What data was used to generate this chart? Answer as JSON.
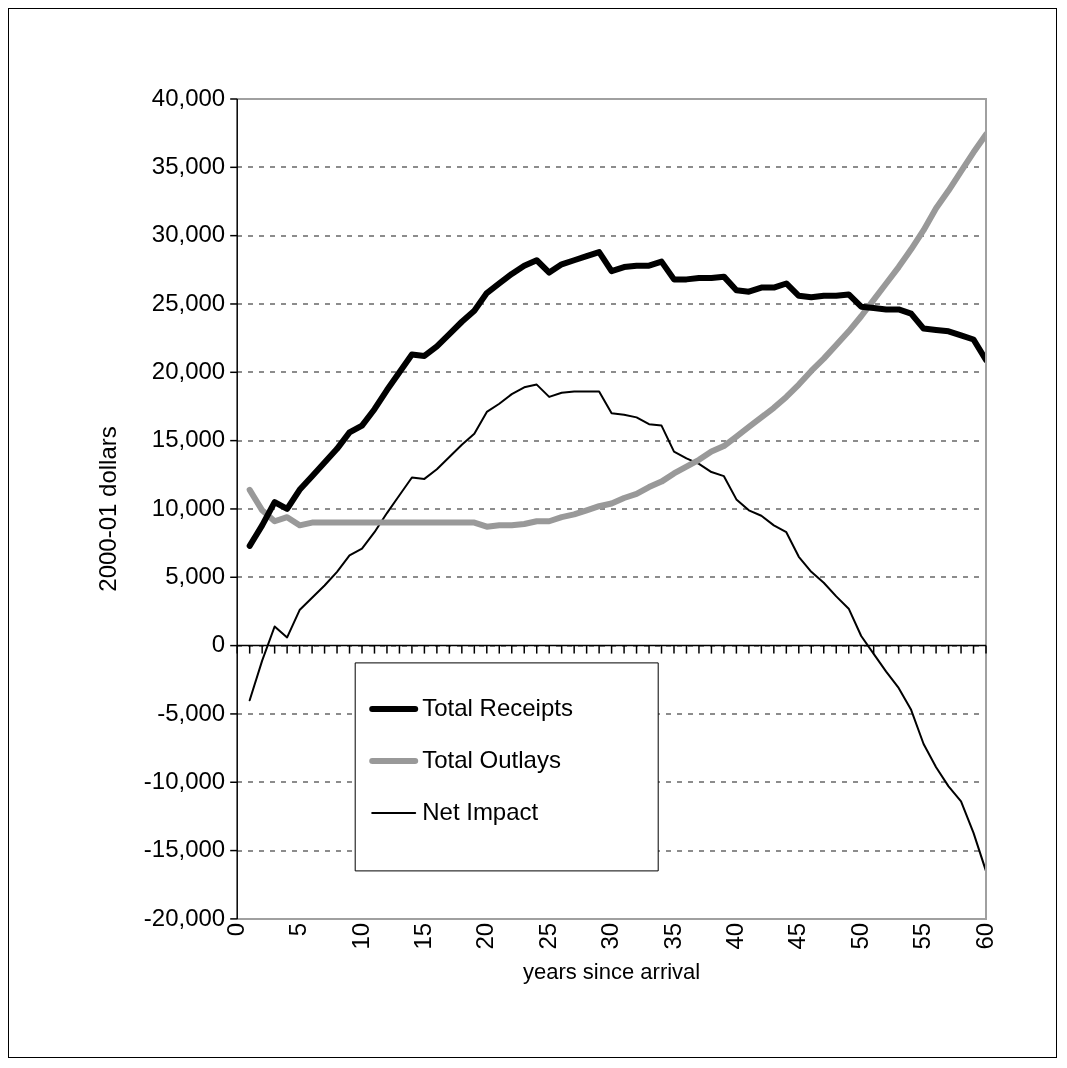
{
  "chart_data": {
    "type": "line",
    "xlabel": "years since arrival",
    "ylabel": "2000-01 dollars",
    "x": [
      1,
      2,
      3,
      4,
      5,
      6,
      7,
      8,
      9,
      10,
      11,
      12,
      13,
      14,
      15,
      16,
      17,
      18,
      19,
      20,
      21,
      22,
      23,
      24,
      25,
      26,
      27,
      28,
      29,
      30,
      31,
      32,
      33,
      34,
      35,
      36,
      37,
      38,
      39,
      40,
      41,
      42,
      43,
      44,
      45,
      46,
      47,
      48,
      49,
      50,
      51,
      52,
      53,
      54,
      55,
      56,
      57,
      58,
      59,
      60
    ],
    "series": [
      {
        "name": "Total Receipts",
        "color": "#000000",
        "values": [
          7300,
          8800,
          10500,
          10000,
          11400,
          12400,
          13400,
          14400,
          15600,
          16100,
          17300,
          18700,
          20000,
          21300,
          21200,
          21900,
          22800,
          23700,
          24500,
          25800,
          26500,
          27200,
          27800,
          28200,
          27300,
          27900,
          28200,
          28500,
          28800,
          27400,
          27700,
          27800,
          27800,
          28100,
          26800,
          26800,
          26900,
          26900,
          27000,
          26000,
          25900,
          26200,
          26200,
          26500,
          25600,
          25500,
          25600,
          25600,
          25700,
          24800,
          24700,
          24600,
          24600,
          24300,
          23200,
          23100,
          23000,
          22700,
          22400,
          20900
        ]
      },
      {
        "name": "Total Outlays",
        "color": "#999999",
        "values": [
          11400,
          9900,
          9100,
          9400,
          8800,
          9000,
          9000,
          9000,
          9000,
          9000,
          9000,
          9000,
          9000,
          9000,
          9000,
          9000,
          9000,
          9000,
          9000,
          8700,
          8800,
          8800,
          8900,
          9100,
          9100,
          9400,
          9600,
          9900,
          10200,
          10400,
          10800,
          11100,
          11600,
          12000,
          12600,
          13100,
          13600,
          14200,
          14600,
          15300,
          16000,
          16700,
          17400,
          18200,
          19100,
          20100,
          21000,
          22000,
          23000,
          24100,
          25300,
          26500,
          27700,
          29000,
          30400,
          32000,
          33300,
          34700,
          36100,
          37400
        ]
      },
      {
        "name": "Net Impact",
        "color": "#000000",
        "values": [
          -4000,
          -1100,
          1400,
          600,
          2600,
          3500,
          4400,
          5400,
          6600,
          7100,
          8300,
          9700,
          11000,
          12300,
          12200,
          12900,
          13800,
          14700,
          15500,
          17100,
          17700,
          18400,
          18900,
          19100,
          18200,
          18500,
          18600,
          18600,
          18600,
          17000,
          16900,
          16700,
          16200,
          16100,
          14200,
          13700,
          13300,
          12700,
          12400,
          10700,
          9900,
          9500,
          8800,
          8300,
          6500,
          5400,
          4600,
          3600,
          2700,
          700,
          -600,
          -1900,
          -3100,
          -4700,
          -7200,
          -8900,
          -10300,
          -11400,
          -13700,
          -16500
        ]
      }
    ],
    "xlim": [
      0,
      60
    ],
    "xticks": [
      0,
      {
        "value": 1,
        "label": null
      },
      {
        "value": 2,
        "label": null
      },
      {
        "value": 3,
        "label": null
      },
      {
        "value": 4,
        "label": null
      },
      5,
      {
        "value": 6,
        "label": null
      },
      {
        "value": 7,
        "label": null
      },
      {
        "value": 8,
        "label": null
      },
      {
        "value": 9,
        "label": null
      },
      10,
      {
        "value": 11,
        "label": null
      },
      {
        "value": 12,
        "label": null
      },
      {
        "value": 13,
        "label": null
      },
      {
        "value": 14,
        "label": null
      },
      15,
      {
        "value": 16,
        "label": null
      },
      {
        "value": 17,
        "label": null
      },
      {
        "value": 18,
        "label": null
      },
      {
        "value": 19,
        "label": null
      },
      20,
      {
        "value": 21,
        "label": null
      },
      {
        "value": 22,
        "label": null
      },
      {
        "value": 23,
        "label": null
      },
      {
        "value": 24,
        "label": null
      },
      25,
      {
        "value": 26,
        "label": null
      },
      {
        "value": 27,
        "label": null
      },
      {
        "value": 28,
        "label": null
      },
      {
        "value": 29,
        "label": null
      },
      30,
      {
        "value": 31,
        "label": null
      },
      {
        "value": 32,
        "label": null
      },
      {
        "value": 33,
        "label": null
      },
      {
        "value": 34,
        "label": null
      },
      35,
      {
        "value": 36,
        "label": null
      },
      {
        "value": 37,
        "label": null
      },
      {
        "value": 38,
        "label": null
      },
      {
        "value": 39,
        "label": null
      },
      40,
      {
        "value": 41,
        "label": null
      },
      {
        "value": 42,
        "label": null
      },
      {
        "value": 43,
        "label": null
      },
      {
        "value": 44,
        "label": null
      },
      45,
      {
        "value": 46,
        "label": null
      },
      {
        "value": 47,
        "label": null
      },
      {
        "value": 48,
        "label": null
      },
      {
        "value": 49,
        "label": null
      },
      50,
      {
        "value": 51,
        "label": null
      },
      {
        "value": 52,
        "label": null
      },
      {
        "value": 53,
        "label": null
      },
      {
        "value": 54,
        "label": null
      },
      55,
      {
        "value": 56,
        "label": null
      },
      {
        "value": 57,
        "label": null
      },
      {
        "value": 58,
        "label": null
      },
      {
        "value": 59,
        "label": null
      },
      60
    ],
    "ylim": [
      -20000,
      40000
    ],
    "yticks": [
      {
        "value": -20000,
        "label": "-20,000"
      },
      {
        "value": -15000,
        "label": "-15,000"
      },
      {
        "value": -10000,
        "label": "-10,000"
      },
      {
        "value": -5000,
        "label": "-5,000"
      },
      0,
      {
        "value": 5000,
        "label": "5,000"
      },
      {
        "value": 10000,
        "label": "10,000"
      },
      {
        "value": 15000,
        "label": "15,000"
      },
      {
        "value": 20000,
        "label": "20,000"
      },
      {
        "value": 25000,
        "label": "25,000"
      },
      {
        "value": 30000,
        "label": "30,000"
      },
      {
        "value": 35000,
        "label": "35,000"
      },
      {
        "value": 40000,
        "label": "40,000"
      }
    ],
    "grid": "y",
    "legend": "bottom left",
    "marker": "none",
    "line_style": "solid"
  }
}
